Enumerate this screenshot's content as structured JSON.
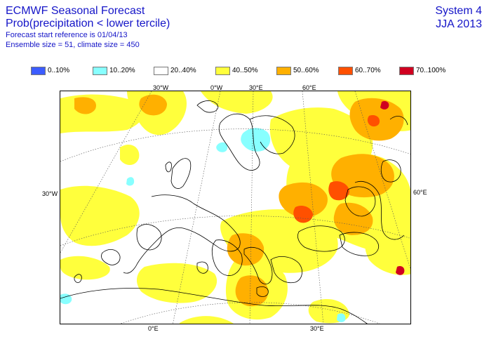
{
  "header": {
    "title": "ECMWF Seasonal Forecast",
    "subtitle": "Prob(precipitation < lower tercile)",
    "line3": "Forecast start reference is 01/04/13",
    "line4": "Ensemble size = 51, climate size = 450",
    "system": "System 4",
    "season": "JJA 2013"
  },
  "legend": [
    {
      "label": "0..10%",
      "color": "#3c5cff"
    },
    {
      "label": "10..20%",
      "color": "#88ffff"
    },
    {
      "label": "20..40%",
      "color": "#ffffff"
    },
    {
      "label": "40..50%",
      "color": "#ffff3c"
    },
    {
      "label": "50..60%",
      "color": "#ffb000"
    },
    {
      "label": "60..70%",
      "color": "#ff5000"
    },
    {
      "label": "70..100%",
      "color": "#d00020"
    }
  ],
  "axis_labels": {
    "top": [
      "30°W",
      "0°W",
      "30°E",
      "60°E"
    ],
    "left": "30°W",
    "right": "60°E",
    "bottom": [
      "0°E",
      "30°E"
    ]
  }
}
